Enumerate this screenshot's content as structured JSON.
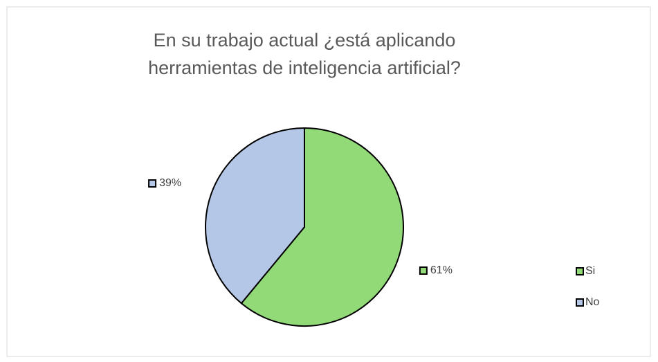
{
  "chart_data": {
    "type": "pie",
    "title": "En su trabajo actual ¿está aplicando herramientas de inteligencia artificial?",
    "categories": [
      "Si",
      "No"
    ],
    "values": [
      61,
      39
    ],
    "value_labels": [
      "61%",
      "39%"
    ],
    "colors": [
      "#92d977",
      "#b4c7e7"
    ],
    "legend": "right"
  }
}
